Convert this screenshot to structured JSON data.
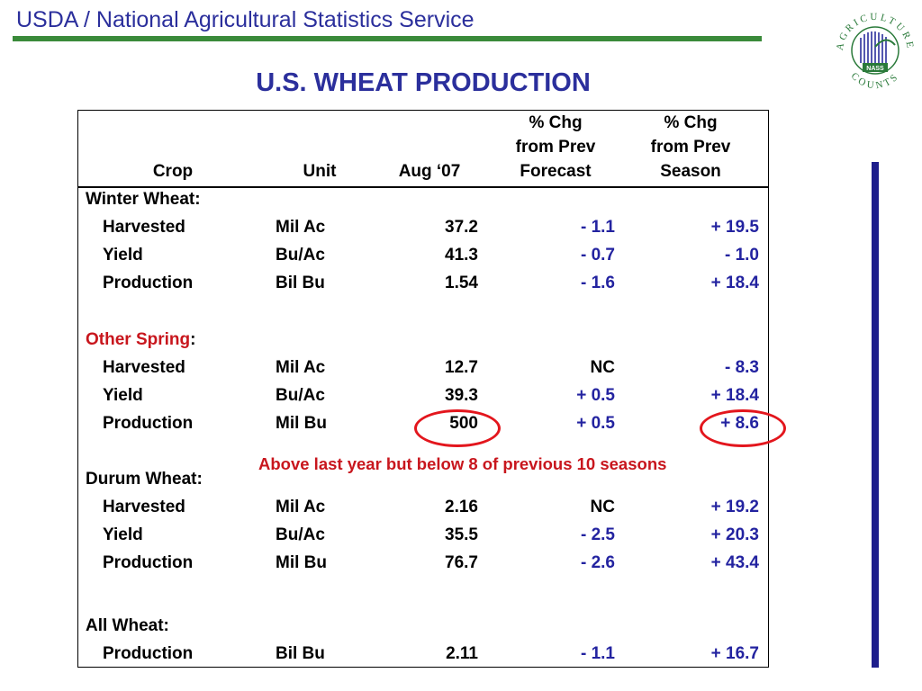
{
  "header": {
    "org": "USDA / National Agricultural Statistics Service",
    "logo_ring_text": "AGRICULTURE COUNTS",
    "logo_center": "NASS",
    "title": "U.S. WHEAT PRODUCTION"
  },
  "columns": {
    "crop": "Crop",
    "unit": "Unit",
    "aug": "Aug ‘07",
    "chg_forecast": [
      "% Chg",
      "from Prev",
      "Forecast"
    ],
    "chg_season": [
      "% Chg",
      "from Prev",
      "Season"
    ]
  },
  "sections": [
    {
      "label": "Winter Wheat:",
      "rows": [
        {
          "item": "Harvested",
          "unit": "Mil Ac",
          "aug": "37.2",
          "fc": "- 1.1",
          "sn": "+ 19.5"
        },
        {
          "item": "Yield",
          "unit": "Bu/Ac",
          "aug": "41.3",
          "fc": "- 0.7",
          "sn": "- 1.0"
        },
        {
          "item": "Production",
          "unit": "Bil Bu",
          "aug": "1.54",
          "fc": "- 1.6",
          "sn": "+ 18.4"
        }
      ]
    },
    {
      "label_red": "Other Spring",
      "label_suffix": ":",
      "rows": [
        {
          "item": "Harvested",
          "unit": "Mil Ac",
          "aug": "12.7",
          "fc": "NC",
          "sn": "- 8.3"
        },
        {
          "item": "Yield",
          "unit": "Bu/Ac",
          "aug": "39.3",
          "fc": "+ 0.5",
          "sn": "+ 18.4"
        },
        {
          "item": "Production",
          "unit": "Mil Bu",
          "aug": "500",
          "fc": "+ 0.5",
          "sn": "+ 8.6"
        }
      ]
    },
    {
      "label": "Durum Wheat:",
      "rows": [
        {
          "item": "Harvested",
          "unit": "Mil Ac",
          "aug": "2.16",
          "fc": "NC",
          "sn": "+ 19.2"
        },
        {
          "item": "Yield",
          "unit": "Bu/Ac",
          "aug": "35.5",
          "fc": "- 2.5",
          "sn": "+ 20.3"
        },
        {
          "item": "Production",
          "unit": "Mil Bu",
          "aug": "76.7",
          "fc": "- 2.6",
          "sn": "+ 43.4"
        }
      ]
    },
    {
      "label": "All Wheat:",
      "rows": [
        {
          "item": "Production",
          "unit": "Bil Bu",
          "aug": "2.11",
          "fc": "- 1.1",
          "sn": "+ 16.7"
        }
      ]
    }
  ],
  "annotation": "Above last year but below 8 of previous 10 seasons",
  "colors": {
    "title_blue": "#2b2f9c",
    "value_blue": "#2323a0",
    "accent_red": "#c8161d",
    "green": "#3a8a3a"
  }
}
